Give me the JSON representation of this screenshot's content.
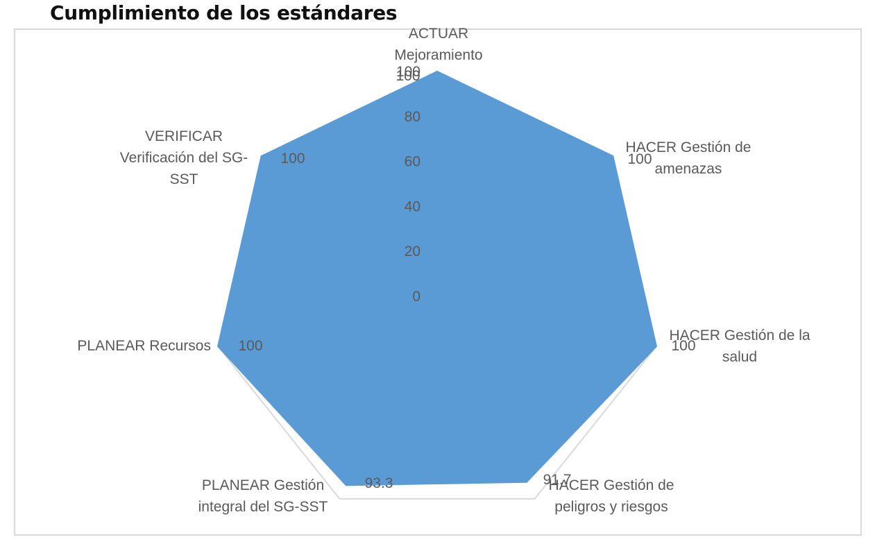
{
  "title": "Cumplimiento de los estándares",
  "chart_data": {
    "type": "radar",
    "title": "Cumplimiento de los estándares",
    "categories": [
      [
        "ACTUAR",
        "Mejoramiento"
      ],
      [
        "HACER Gestión de",
        "amenazas"
      ],
      [
        "HACER Gestión de la",
        "salud"
      ],
      [
        "HACER Gestión de",
        "peligros y riesgos"
      ],
      [
        "PLANEAR Gestión",
        "integral del SG-SST"
      ],
      [
        "PLANEAR Recursos"
      ],
      [
        "VERIFICAR",
        "Verificación del SG-",
        "SST"
      ]
    ],
    "series": [
      {
        "values": [
          100,
          100,
          100,
          91.7,
          93.3,
          100,
          100
        ]
      }
    ],
    "data_labels": [
      "100",
      "100",
      "100",
      "91.7",
      "93.3",
      "100",
      "100"
    ],
    "radial_ticks": [
      "0",
      "20",
      "40",
      "60",
      "80",
      "100"
    ],
    "rlim": [
      0,
      100
    ],
    "grid": false,
    "colors": {
      "series": "#5b9bd5",
      "gridline": "#d9d9d9",
      "text": "#595959"
    }
  }
}
